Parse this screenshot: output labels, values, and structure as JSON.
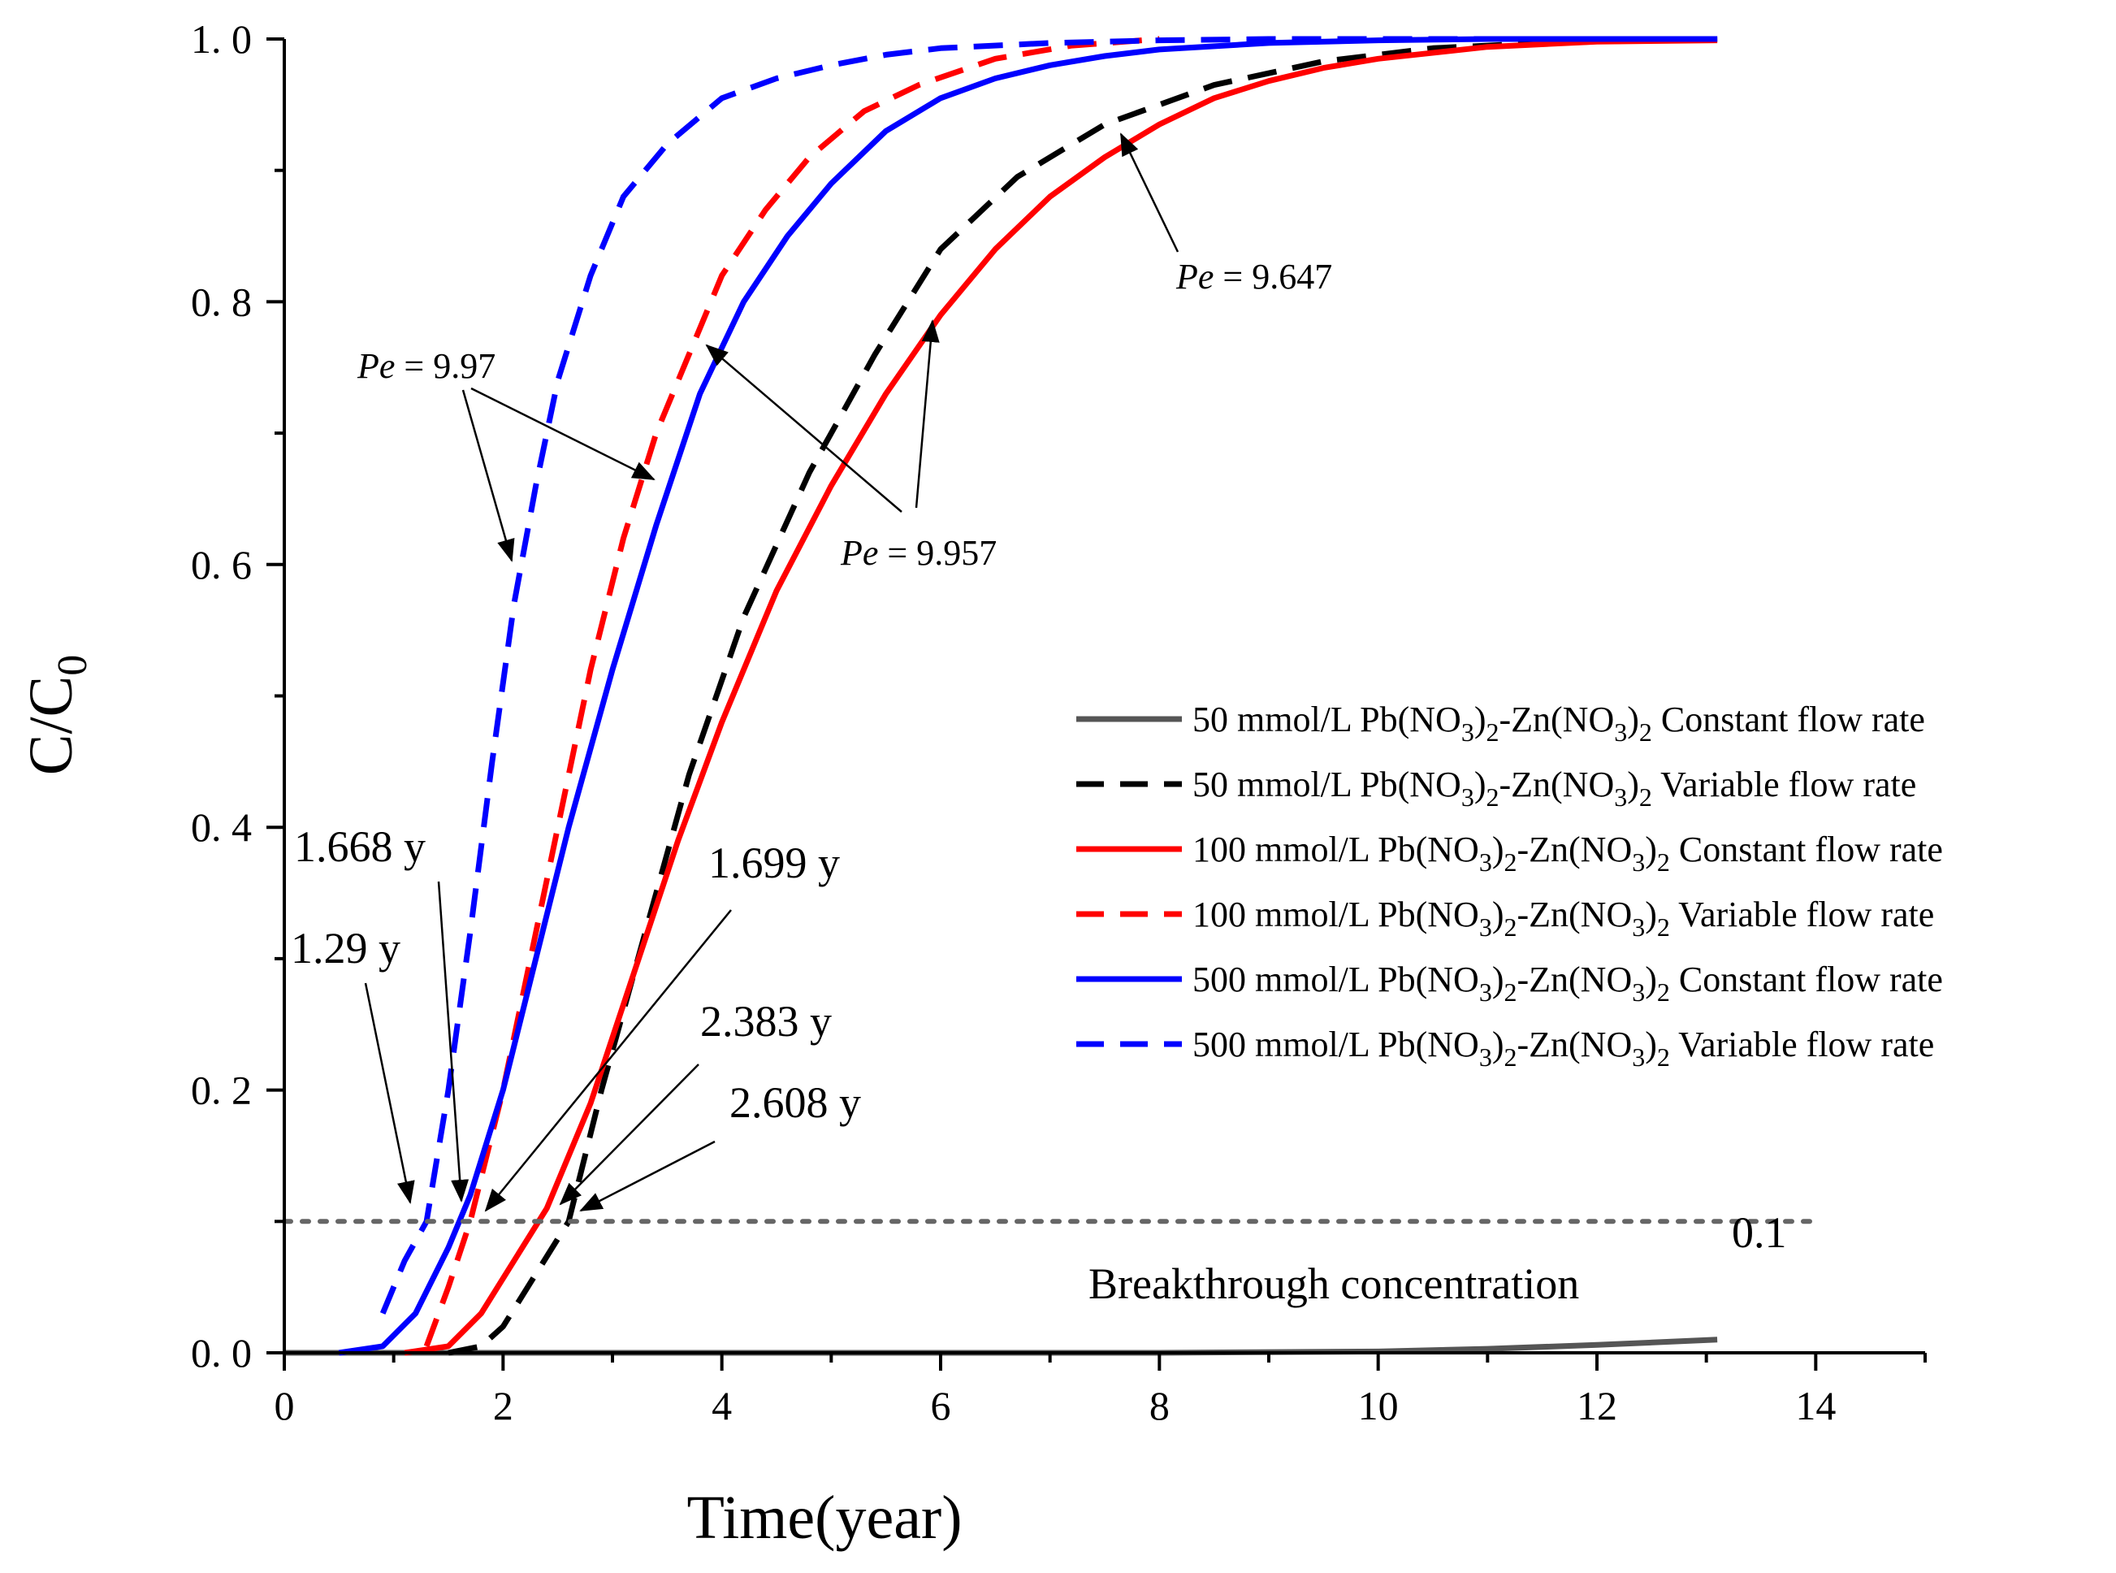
{
  "chart_data": {
    "type": "line",
    "xlabel": "Time(year)",
    "ylabel": "C/C",
    "ylabel_sub": "0",
    "xlim": [
      0,
      15
    ],
    "ylim": [
      0,
      1.0
    ],
    "xticks": [
      0,
      2,
      4,
      6,
      8,
      10,
      12,
      14
    ],
    "xtick_labels": [
      "0",
      "2",
      "4",
      "6",
      "8",
      "10",
      "12",
      "14"
    ],
    "yticks": [
      0,
      0.2,
      0.4,
      0.6,
      0.8,
      1.0
    ],
    "ytick_labels": [
      "0. 0",
      "0. 2",
      "0. 4",
      "0. 6",
      "0. 8",
      "1. 0"
    ],
    "grid": false,
    "legend_position": "right",
    "series": [
      {
        "name": "50 mmol/L Pb(NO3)2-Zn(NO3)2 Constant flow rate",
        "color": "#555555",
        "dash": "solid",
        "x": [
          0,
          4,
          8,
          10,
          11,
          12,
          13.1
        ],
        "y": [
          0,
          0,
          0,
          0.001,
          0.003,
          0.006,
          0.01
        ]
      },
      {
        "name": "50 mmol/L Pb(NO3)2-Zn(NO3)2 Variable flow rate",
        "color": "#000000",
        "dash": "dashed",
        "x": [
          1.5,
          1.8,
          2.0,
          2.3,
          2.6,
          2.9,
          3.3,
          3.7,
          4.2,
          4.8,
          5.4,
          6.0,
          6.7,
          7.5,
          8.5,
          9.5,
          10.5,
          11.5,
          12.5,
          13.1
        ],
        "y": [
          0,
          0.005,
          0.02,
          0.06,
          0.1,
          0.2,
          0.32,
          0.44,
          0.56,
          0.67,
          0.76,
          0.84,
          0.895,
          0.935,
          0.965,
          0.983,
          0.993,
          0.997,
          0.999,
          1.0
        ]
      },
      {
        "name": "100 mmol/L Pb(NO3)2-Zn(NO3)2 Constant flow rate",
        "color": "#ff0000",
        "dash": "solid",
        "x": [
          1.1,
          1.5,
          1.8,
          2.1,
          2.4,
          2.8,
          3.2,
          3.6,
          4.0,
          4.5,
          5.0,
          5.5,
          6.0,
          6.5,
          7.0,
          7.5,
          8.0,
          8.5,
          9.0,
          9.5,
          10.0,
          11.0,
          12.0,
          13.1
        ],
        "y": [
          0,
          0.005,
          0.03,
          0.07,
          0.11,
          0.19,
          0.29,
          0.39,
          0.48,
          0.58,
          0.66,
          0.73,
          0.79,
          0.84,
          0.88,
          0.91,
          0.935,
          0.955,
          0.968,
          0.978,
          0.985,
          0.994,
          0.998,
          0.999
        ]
      },
      {
        "name": "100 mmol/L Pb(NO3)2-Zn(NO3)2 Variable flow rate",
        "color": "#ff0000",
        "dash": "dashed",
        "x": [
          1.3,
          1.5,
          1.7,
          2.0,
          2.2,
          2.5,
          2.8,
          3.1,
          3.4,
          3.7,
          4.0,
          4.4,
          4.8,
          5.3,
          5.8,
          6.5,
          7.2,
          8.0
        ],
        "y": [
          0.005,
          0.05,
          0.1,
          0.2,
          0.28,
          0.4,
          0.52,
          0.62,
          0.7,
          0.76,
          0.82,
          0.87,
          0.91,
          0.945,
          0.965,
          0.985,
          0.995,
          1.0
        ]
      },
      {
        "name": "500 mmol/L Pb(NO3)2-Zn(NO3)2 Constant flow rate",
        "color": "#0000ff",
        "dash": "solid",
        "x": [
          0.5,
          0.9,
          1.2,
          1.5,
          1.7,
          2.0,
          2.3,
          2.6,
          3.0,
          3.4,
          3.8,
          4.2,
          4.6,
          5.0,
          5.5,
          6.0,
          6.5,
          7.0,
          7.5,
          8.0,
          9.0,
          10.0,
          11.0,
          13.1
        ],
        "y": [
          0,
          0.005,
          0.03,
          0.08,
          0.12,
          0.2,
          0.3,
          0.4,
          0.52,
          0.63,
          0.73,
          0.8,
          0.85,
          0.89,
          0.93,
          0.955,
          0.97,
          0.98,
          0.987,
          0.992,
          0.997,
          0.999,
          1.0,
          1.0
        ]
      },
      {
        "name": "500 mmol/L Pb(NO3)2-Zn(NO3)2 Variable flow rate",
        "color": "#0000ff",
        "dash": "dashed",
        "x": [
          0.9,
          1.1,
          1.3,
          1.5,
          1.7,
          1.9,
          2.1,
          2.3,
          2.5,
          2.8,
          3.1,
          3.5,
          4.0,
          4.5,
          5.0,
          5.5,
          6.0,
          7.0,
          8.0,
          9.0,
          10.0,
          13.1
        ],
        "y": [
          0.03,
          0.07,
          0.1,
          0.2,
          0.32,
          0.45,
          0.57,
          0.66,
          0.74,
          0.82,
          0.88,
          0.92,
          0.955,
          0.97,
          0.98,
          0.988,
          0.993,
          0.997,
          0.999,
          1.0,
          1.0,
          1.0
        ]
      },
      {
        "name": "",
        "color": "#666666",
        "dash": "dotted",
        "x": [
          0,
          14
        ],
        "y": [
          0.1,
          0.1
        ]
      }
    ],
    "annotations": [
      {
        "text": "1.668 y",
        "x": 1.668
      },
      {
        "text": "1.29 y",
        "x": 1.29
      },
      {
        "text": "1.699 y",
        "x": 1.699
      },
      {
        "text": "2.383 y",
        "x": 2.383
      },
      {
        "text": "2.608 y",
        "x": 2.608
      },
      {
        "text": "0.1"
      },
      {
        "text": "Breakthrough concentration"
      },
      {
        "text_italic": "Pe",
        "text_value": " = 9.97"
      },
      {
        "text_italic": "Pe",
        "text_value": " = 9.957"
      },
      {
        "text_italic": "Pe",
        "text_value": " = 9.647"
      }
    ]
  },
  "labels": {
    "ann_1668": "1.668 y",
    "ann_129": "1.29 y",
    "ann_1699": "1.699 y",
    "ann_2383": "2.383 y",
    "ann_2608": "2.608 y",
    "threshold_value": "0.1",
    "threshold_label": "Breakthrough concentration",
    "pe_italic": "Pe",
    "pe_997": " = 9.97",
    "pe_9957": " = 9.957",
    "pe_9647": " = 9.647"
  },
  "legend": [
    {
      "prefix": "50 mmol/L Pb(NO",
      "s1": "3",
      "mid": ")",
      "s2": "2",
      "mid2": "-Zn(NO",
      "s3": "3",
      "mid3": ")",
      "s4": "2",
      "suffix": " Constant flow rate",
      "color": "#555555",
      "dash": "solid"
    },
    {
      "prefix": "50 mmol/L Pb(NO",
      "s1": "3",
      "mid": ")",
      "s2": "2",
      "mid2": "-Zn(NO",
      "s3": "3",
      "mid3": ")",
      "s4": "2",
      "suffix": " Variable flow rate",
      "color": "#000000",
      "dash": "dashed"
    },
    {
      "prefix": "100 mmol/L Pb(NO",
      "s1": "3",
      "mid": ")",
      "s2": "2",
      "mid2": "-Zn(NO",
      "s3": "3",
      "mid3": ")",
      "s4": "2",
      "suffix": " Constant flow rate",
      "color": "#ff0000",
      "dash": "solid"
    },
    {
      "prefix": "100 mmol/L Pb(NO",
      "s1": "3",
      "mid": ")",
      "s2": "2",
      "mid2": "-Zn(NO",
      "s3": "3",
      "mid3": ")",
      "s4": "2",
      "suffix": " Variable flow rate",
      "color": "#ff0000",
      "dash": "dashed"
    },
    {
      "prefix": "500 mmol/L Pb(NO",
      "s1": "3",
      "mid": ")",
      "s2": "2",
      "mid2": "-Zn(NO",
      "s3": "3",
      "mid3": ")",
      "s4": "2",
      "suffix": " Constant flow rate",
      "color": "#0000ff",
      "dash": "solid"
    },
    {
      "prefix": "500 mmol/L Pb(NO",
      "s1": "3",
      "mid": ")",
      "s2": "2",
      "mid2": "-Zn(NO",
      "s3": "3",
      "mid3": ")",
      "s4": "2",
      "suffix": " Variable flow rate",
      "color": "#0000ff",
      "dash": "dashed"
    }
  ]
}
